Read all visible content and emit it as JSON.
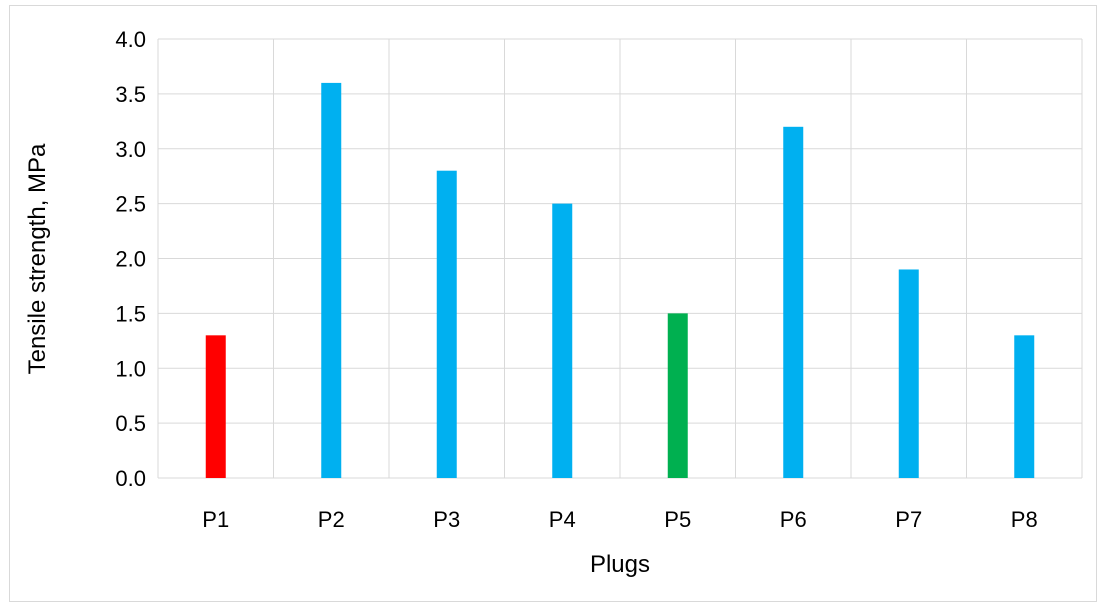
{
  "chart_data": {
    "type": "bar",
    "categories": [
      "P1",
      "P2",
      "P3",
      "P4",
      "P5",
      "P6",
      "P7",
      "P8"
    ],
    "values": [
      1.3,
      3.6,
      2.8,
      2.5,
      1.5,
      3.2,
      1.9,
      1.3
    ],
    "bar_colors": [
      "#ff0000",
      "#00b0f0",
      "#00b0f0",
      "#00b0f0",
      "#00b050",
      "#00b0f0",
      "#00b0f0",
      "#00b0f0"
    ],
    "xlabel": "Plugs",
    "ylabel": "Tensile strength, MPa",
    "ylim": [
      0,
      4.0
    ],
    "ytick_values": [
      0,
      0.5,
      1.0,
      1.5,
      2.0,
      2.5,
      3.0,
      3.5,
      4.0
    ],
    "ytick_labels": [
      "0.0",
      "0.5",
      "1.0",
      "1.5",
      "2.0",
      "2.5",
      "3.0",
      "3.5",
      "4.0"
    ],
    "grid": "on",
    "gridline_color": "#d9d9d9"
  }
}
